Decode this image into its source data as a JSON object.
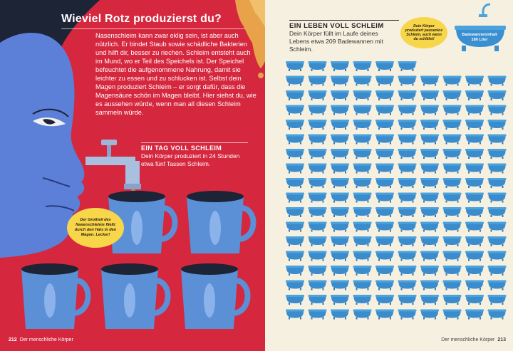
{
  "left_page": {
    "title": "Wieviel Rotz produzierst du?",
    "intro": "Nasenschleim kann zwar eklig sein, ist aber auch nützlich. Er bindet Staub sowie schädliche Bakterien und hilft dir, besser zu riechen. Schleim entsteht auch im Mund, wo er Teil des Speichels ist. Der Speichel befeuchtet die aufgenommene Nahrung, damit sie leichter zu essen und zu schlucken ist. Selbst dein Magen produziert Schleim – er sorgt dafür, dass die Magensäure schön im Magen bleibt. Hier siehst du, wie es aussehen würde, wenn man all diesen Schleim sammeln würde.",
    "section_heading": "EIN TAG VOLL SCHLEIM",
    "section_text": "Dein Körper produziert in 24 Stunden etwa fünf Tassen Schleim.",
    "bubble": "Der Großteil des Nasenschleims fließt durch den Hals in den Magen. Lecker!",
    "page_number": "212",
    "footer": "Der menschliche Körper"
  },
  "right_page": {
    "section_heading": "EIN LEBEN VOLL SCHLEIM",
    "section_text": "Dein Körper füllt im Laufe deines Lebens etwa 209 Badewannen mit Schleim.",
    "bubble": "Dein Körper produziert pausenlos Schleim, auch wenn du schläfst!",
    "capacity_label": "Badewanneninhalt",
    "capacity_value": "180 Liter",
    "page_number": "213",
    "footer": "Der menschliche Körper"
  },
  "colors": {
    "left_bg": "#d5273e",
    "cup_blue": "#5b8fd6",
    "tub_blue": "#4aa3dc",
    "bubble_yellow": "#f7d64a"
  }
}
